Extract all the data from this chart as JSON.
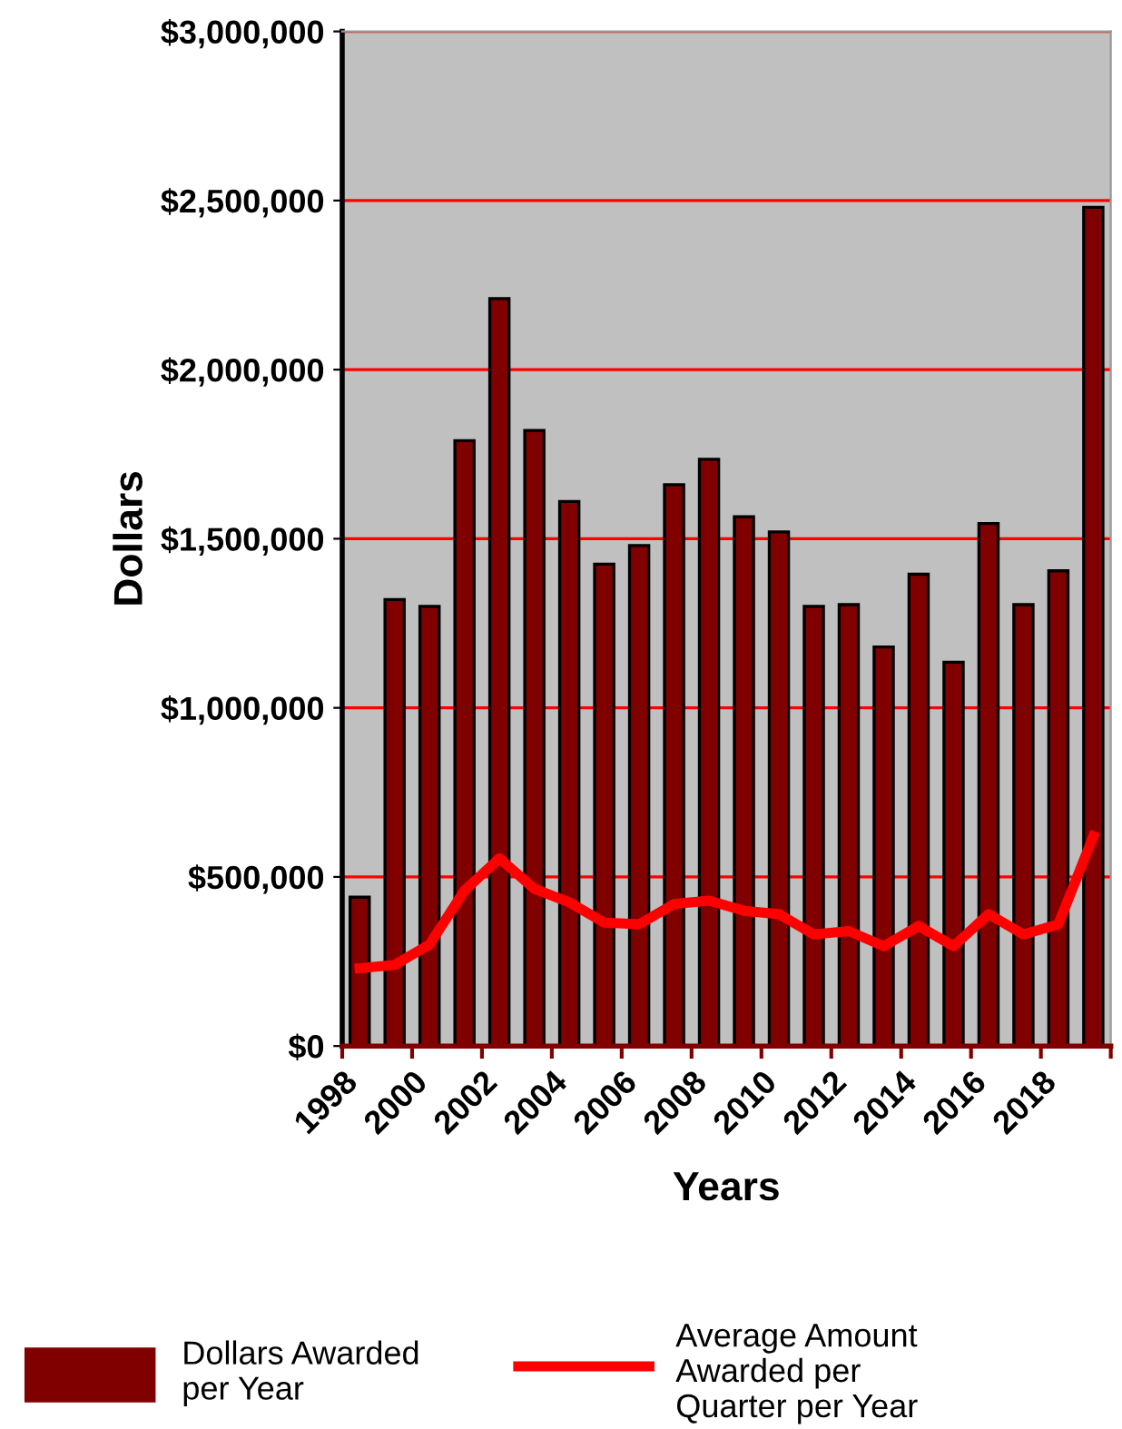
{
  "chart_data": {
    "type": "bar",
    "xlabel": "Years",
    "ylabel": "Dollars",
    "x": [
      1998.5,
      1999.5,
      2000.5,
      2001.5,
      2002.5,
      2003.5,
      2004.5,
      2005.5,
      2006.5,
      2007.5,
      2008.5,
      2009.5,
      2010.5,
      2011.5,
      2012.5,
      2013.5,
      2014.5,
      2015.5,
      2016.5,
      2017.5,
      2018.5,
      2019.5
    ],
    "series": [
      {
        "name": "Dollars Awarded\nper Year",
        "color": "#800000",
        "values": [
          440000,
          1320000,
          1300000,
          1790000,
          2210000,
          1820000,
          1610000,
          1425000,
          1480000,
          1660000,
          1735000,
          1565000,
          1520000,
          1300000,
          1305000,
          1180000,
          1395000,
          1135000,
          1545000,
          1305000,
          1405000,
          2480000
        ]
      },
      {
        "name": "Average Amount\nAwarded per\nQuarter per Year",
        "type": "line",
        "color": "#ff0000",
        "values": [
          230000,
          240000,
          300000,
          460000,
          555000,
          465000,
          425000,
          365000,
          360000,
          420000,
          430000,
          400000,
          390000,
          330000,
          340000,
          295000,
          355000,
          295000,
          390000,
          330000,
          360000,
          620000
        ]
      }
    ],
    "xlim": [
      1998,
      2020
    ],
    "xticks": [
      1998,
      2000,
      2002,
      2004,
      2006,
      2008,
      2010,
      2012,
      2014,
      2016,
      2018,
      {
        "value": 2020,
        "label": null
      }
    ],
    "ylim": [
      0,
      3000000
    ],
    "yticks": [
      {
        "value": 0,
        "label": "$0"
      },
      {
        "value": 500000,
        "label": "$500,000"
      },
      {
        "value": 1000000,
        "label": "$1,000,000"
      },
      {
        "value": 1500000,
        "label": "$1,500,000"
      },
      {
        "value": 2000000,
        "label": "$2,000,000"
      },
      {
        "value": 2500000,
        "label": "$2,500,000"
      },
      {
        "value": 3000000,
        "label": "$3,000,000"
      }
    ],
    "grid": "y",
    "legend": "bottom"
  }
}
